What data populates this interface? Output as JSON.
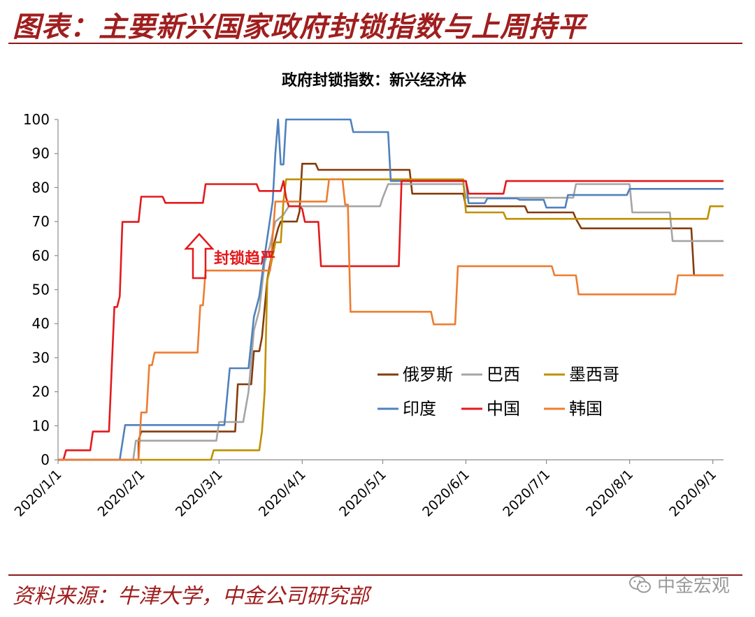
{
  "header": {
    "title": "图表：主要新兴国家政府封锁指数与上周持平"
  },
  "footer": {
    "source": "资料来源：牛津大学，中金公司研究部",
    "watermark": "中金宏观"
  },
  "chart_data": {
    "type": "line",
    "title": "政府封锁指数：新兴经济体",
    "ylim": [
      0,
      100
    ],
    "yticks": [
      0,
      10,
      20,
      30,
      40,
      50,
      60,
      70,
      80,
      90,
      100
    ],
    "xlim": [
      "2020-01-01",
      "2020-09-05"
    ],
    "xticks": [
      "2020/1/1",
      "2020/2/1",
      "2020/3/1",
      "2020/4/1",
      "2020/5/1",
      "2020/6/1",
      "2020/7/1",
      "2020/8/1",
      "2020/9/1"
    ],
    "grid": false,
    "legend_position": "lower-right",
    "annotation": "封锁趋严",
    "series": [
      {
        "name": "俄罗斯",
        "color": "#843c0c",
        "points": [
          [
            "2020-01-01",
            0
          ],
          [
            "2020-01-31",
            0
          ],
          [
            "2020-01-31",
            5.6
          ],
          [
            "2020-02-01",
            8.3
          ],
          [
            "2020-03-07",
            8.3
          ],
          [
            "2020-03-08",
            22.2
          ],
          [
            "2020-03-13",
            22.2
          ],
          [
            "2020-03-14",
            31.9
          ],
          [
            "2020-03-16",
            31.9
          ],
          [
            "2020-03-17",
            36
          ],
          [
            "2020-03-19",
            53
          ],
          [
            "2020-03-21",
            62
          ],
          [
            "2020-03-23",
            68
          ],
          [
            "2020-03-24",
            70
          ],
          [
            "2020-03-30",
            70
          ],
          [
            "2020-03-31",
            73
          ],
          [
            "2020-04-01",
            87
          ],
          [
            "2020-04-06",
            87
          ],
          [
            "2020-04-07",
            85.2
          ],
          [
            "2020-05-11",
            85.2
          ],
          [
            "2020-05-12",
            78.2
          ],
          [
            "2020-05-31",
            78.2
          ],
          [
            "2020-06-01",
            74.5
          ],
          [
            "2020-06-23",
            74.5
          ],
          [
            "2020-06-24",
            72.7
          ],
          [
            "2020-07-11",
            72.7
          ],
          [
            "2020-07-12",
            70.8
          ],
          [
            "2020-07-14",
            68
          ],
          [
            "2020-08-24",
            68
          ],
          [
            "2020-08-25",
            54.2
          ],
          [
            "2020-09-05",
            54.2
          ]
        ]
      },
      {
        "name": "巴西",
        "color": "#a5a5a5",
        "points": [
          [
            "2020-01-01",
            0
          ],
          [
            "2020-01-29",
            0
          ],
          [
            "2020-01-30",
            5.6
          ],
          [
            "2020-02-29",
            5.6
          ],
          [
            "2020-03-01",
            11.1
          ],
          [
            "2020-03-10",
            11.1
          ],
          [
            "2020-03-12",
            20
          ],
          [
            "2020-03-14",
            38
          ],
          [
            "2020-03-16",
            44
          ],
          [
            "2020-03-18",
            58
          ],
          [
            "2020-03-20",
            63
          ],
          [
            "2020-03-22",
            70
          ],
          [
            "2020-03-25",
            72
          ],
          [
            "2020-03-27",
            74.5
          ],
          [
            "2020-04-30",
            74.5
          ],
          [
            "2020-05-01",
            77
          ],
          [
            "2020-05-03",
            81
          ],
          [
            "2020-05-31",
            81
          ],
          [
            "2020-06-01",
            77
          ],
          [
            "2020-07-11",
            77
          ],
          [
            "2020-07-12",
            81
          ],
          [
            "2020-08-01",
            81
          ],
          [
            "2020-08-02",
            72.7
          ],
          [
            "2020-08-16",
            72.7
          ],
          [
            "2020-08-17",
            64.3
          ],
          [
            "2020-09-05",
            64.3
          ]
        ]
      },
      {
        "name": "墨西哥",
        "color": "#bf9000",
        "points": [
          [
            "2020-01-01",
            0
          ],
          [
            "2020-02-27",
            0
          ],
          [
            "2020-02-28",
            2.8
          ],
          [
            "2020-03-16",
            2.8
          ],
          [
            "2020-03-17",
            8.3
          ],
          [
            "2020-03-18",
            20
          ],
          [
            "2020-03-19",
            52.8
          ],
          [
            "2020-03-20",
            56
          ],
          [
            "2020-03-22",
            63.9
          ],
          [
            "2020-03-24",
            63.9
          ],
          [
            "2020-03-25",
            76
          ],
          [
            "2020-03-26",
            82.4
          ],
          [
            "2020-05-31",
            82.4
          ],
          [
            "2020-06-01",
            72.7
          ],
          [
            "2020-06-15",
            72.7
          ],
          [
            "2020-06-16",
            70.8
          ],
          [
            "2020-08-30",
            70.8
          ],
          [
            "2020-08-31",
            74.5
          ],
          [
            "2020-09-05",
            74.5
          ]
        ]
      },
      {
        "name": "印度",
        "color": "#4f81bd",
        "points": [
          [
            "2020-01-01",
            0
          ],
          [
            "2020-01-24",
            0
          ],
          [
            "2020-01-26",
            10.2
          ],
          [
            "2020-03-03",
            10.2
          ],
          [
            "2020-03-05",
            26.9
          ],
          [
            "2020-03-12",
            26.9
          ],
          [
            "2020-03-14",
            42
          ],
          [
            "2020-03-16",
            48
          ],
          [
            "2020-03-18",
            60
          ],
          [
            "2020-03-21",
            76
          ],
          [
            "2020-03-22",
            90
          ],
          [
            "2020-03-23",
            100
          ],
          [
            "2020-03-24",
            86.8
          ],
          [
            "2020-03-25",
            86.8
          ],
          [
            "2020-03-26",
            100
          ],
          [
            "2020-04-19",
            100
          ],
          [
            "2020-04-20",
            96.3
          ],
          [
            "2020-05-03",
            96.3
          ],
          [
            "2020-05-04",
            81.9
          ],
          [
            "2020-06-01",
            81.9
          ],
          [
            "2020-06-02",
            75.4
          ],
          [
            "2020-06-08",
            75.4
          ],
          [
            "2020-06-09",
            76.8
          ],
          [
            "2020-06-20",
            76.8
          ],
          [
            "2020-06-21",
            76.4
          ],
          [
            "2020-06-30",
            76.4
          ],
          [
            "2020-07-01",
            74.1
          ],
          [
            "2020-07-08",
            74.1
          ],
          [
            "2020-07-09",
            77.8
          ],
          [
            "2020-07-31",
            77.8
          ],
          [
            "2020-08-01",
            79.6
          ],
          [
            "2020-09-05",
            79.6
          ]
        ]
      },
      {
        "name": "中国",
        "color": "#e31a1c",
        "points": [
          [
            "2020-01-01",
            0
          ],
          [
            "2020-01-03",
            0
          ],
          [
            "2020-01-04",
            2.8
          ],
          [
            "2020-01-13",
            2.8
          ],
          [
            "2020-01-14",
            8.3
          ],
          [
            "2020-01-20",
            8.3
          ],
          [
            "2020-01-22",
            44.9
          ],
          [
            "2020-01-23",
            44.9
          ],
          [
            "2020-01-24",
            48
          ],
          [
            "2020-01-25",
            69.9
          ],
          [
            "2020-01-31",
            69.9
          ],
          [
            "2020-02-01",
            77.3
          ],
          [
            "2020-02-09",
            77.3
          ],
          [
            "2020-02-10",
            75.5
          ],
          [
            "2020-02-24",
            75.5
          ],
          [
            "2020-02-25",
            81
          ],
          [
            "2020-03-15",
            81
          ],
          [
            "2020-03-16",
            79
          ],
          [
            "2020-03-24",
            79
          ],
          [
            "2020-03-25",
            81.9
          ],
          [
            "2020-03-26",
            77
          ],
          [
            "2020-03-27",
            74.5
          ],
          [
            "2020-03-31",
            74.5
          ],
          [
            "2020-04-01",
            73.7
          ],
          [
            "2020-04-02",
            69.9
          ],
          [
            "2020-04-07",
            69.9
          ],
          [
            "2020-04-08",
            56.9
          ],
          [
            "2020-05-07",
            56.9
          ],
          [
            "2020-05-08",
            81.9
          ],
          [
            "2020-06-01",
            81.9
          ],
          [
            "2020-06-02",
            78.2
          ],
          [
            "2020-06-15",
            78.2
          ],
          [
            "2020-06-16",
            81.9
          ],
          [
            "2020-09-05",
            81.9
          ]
        ]
      },
      {
        "name": "韩国",
        "color": "#ed7d31",
        "points": [
          [
            "2020-01-01",
            0
          ],
          [
            "2020-01-31",
            0
          ],
          [
            "2020-02-01",
            13.9
          ],
          [
            "2020-02-03",
            13.9
          ],
          [
            "2020-02-04",
            27.8
          ],
          [
            "2020-02-05",
            27.8
          ],
          [
            "2020-02-06",
            31.5
          ],
          [
            "2020-02-22",
            31.5
          ],
          [
            "2020-02-23",
            45.4
          ],
          [
            "2020-02-24",
            45.4
          ],
          [
            "2020-02-25",
            55.6
          ],
          [
            "2020-03-20",
            55.6
          ],
          [
            "2020-03-22",
            75.9
          ],
          [
            "2020-04-10",
            75.9
          ],
          [
            "2020-04-11",
            82.4
          ],
          [
            "2020-04-16",
            82.4
          ],
          [
            "2020-04-17",
            75
          ],
          [
            "2020-04-18",
            75
          ],
          [
            "2020-04-19",
            43.5
          ],
          [
            "2020-05-19",
            43.5
          ],
          [
            "2020-05-20",
            39.8
          ],
          [
            "2020-05-28",
            39.8
          ],
          [
            "2020-05-29",
            56.9
          ],
          [
            "2020-07-03",
            56.9
          ],
          [
            "2020-07-04",
            54.2
          ],
          [
            "2020-07-12",
            54.2
          ],
          [
            "2020-07-13",
            48.6
          ],
          [
            "2020-08-18",
            48.6
          ],
          [
            "2020-08-19",
            54.2
          ],
          [
            "2020-09-05",
            54.2
          ]
        ]
      }
    ]
  }
}
